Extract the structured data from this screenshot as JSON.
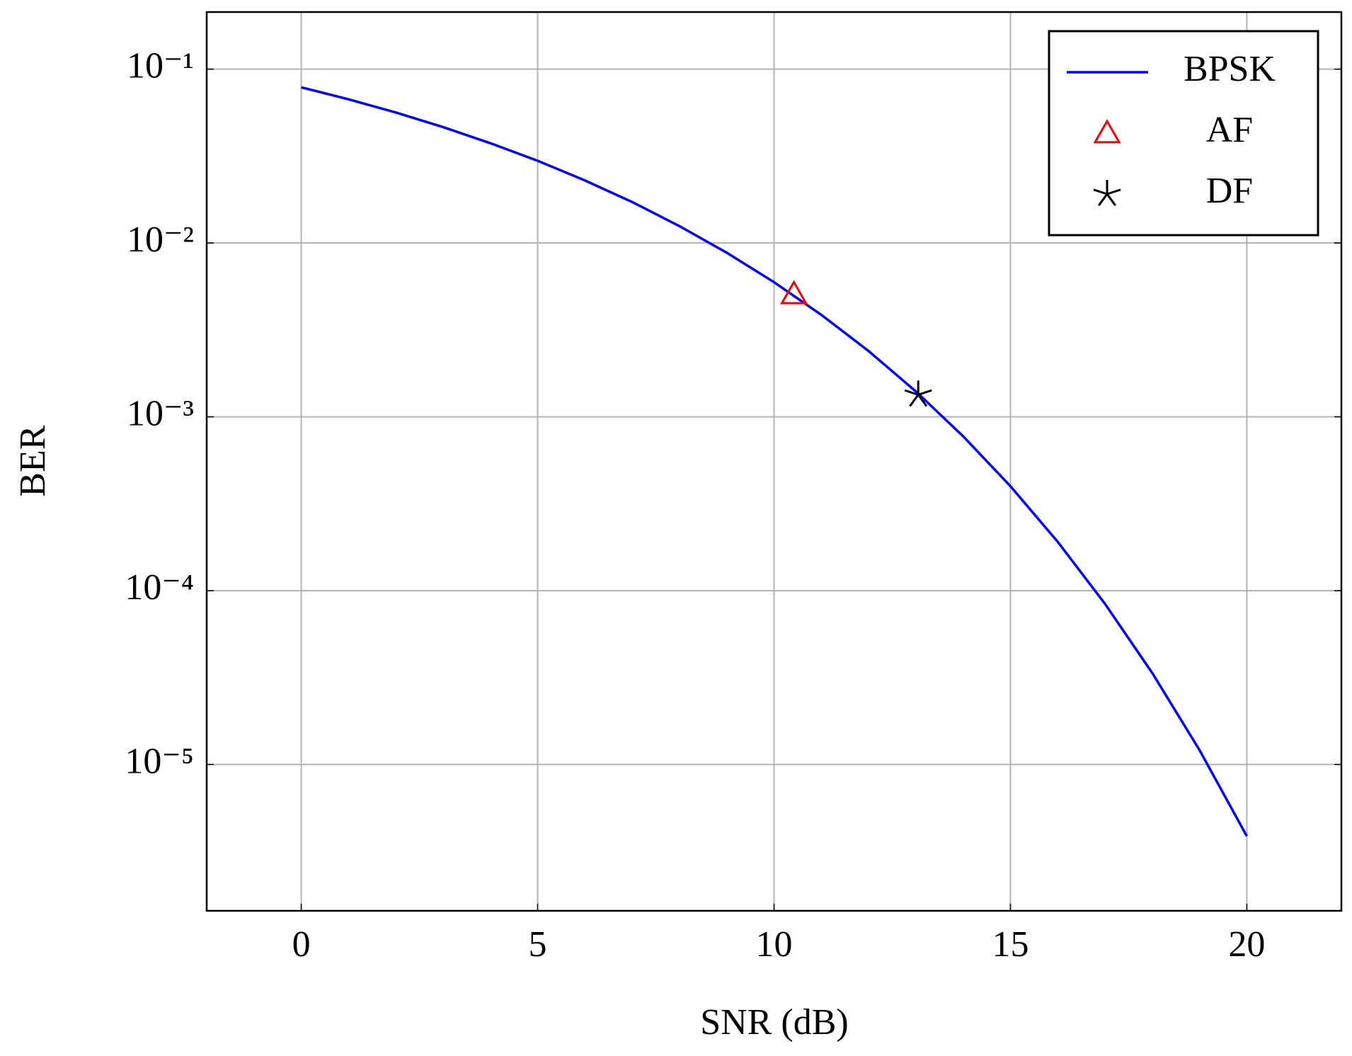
{
  "chart_data": {
    "type": "line",
    "xlabel": "SNR (dB)",
    "ylabel": "BER",
    "xlim": [
      -2,
      22
    ],
    "xticks": [
      0,
      5,
      10,
      15,
      20
    ],
    "ylim": [
      1.44e-06,
      0.213
    ],
    "log_y": true,
    "yticks": [
      {
        "value": 0.1,
        "label": "10⁻¹"
      },
      {
        "value": 0.01,
        "label": "10⁻²"
      },
      {
        "value": 0.001,
        "label": "10⁻³"
      },
      {
        "value": 0.0001,
        "label": "10⁻⁴"
      },
      {
        "value": 1e-05,
        "label": "10⁻⁵"
      }
    ],
    "grid": true,
    "legend": "upper-right",
    "series": [
      {
        "name": "BPSK",
        "color": "#0000ff",
        "style": "line",
        "x": [
          0,
          1,
          2,
          3,
          4,
          5,
          6,
          7,
          8,
          9,
          10,
          11,
          12,
          13,
          14,
          15,
          16,
          17,
          18,
          19,
          20
        ],
        "values": [
          0.0786,
          0.0671,
          0.0563,
          0.0464,
          0.0375,
          0.0297,
          0.0229,
          0.0172,
          0.0125,
          0.00879,
          0.00595,
          0.00386,
          0.00239,
          0.0014,
          0.000773,
          0.000399,
          0.000191,
          8.4e-05,
          3.36e-05,
          1.21e-05,
          3.87e-06
        ]
      },
      {
        "name": "AF",
        "color": "#ff0000",
        "style": "triangle",
        "x": [
          10.42
        ],
        "values": [
          0.00508
        ]
      },
      {
        "name": "DF",
        "color": "#000000",
        "style": "star",
        "x": [
          13.05
        ],
        "values": [
          0.00134
        ]
      }
    ]
  }
}
